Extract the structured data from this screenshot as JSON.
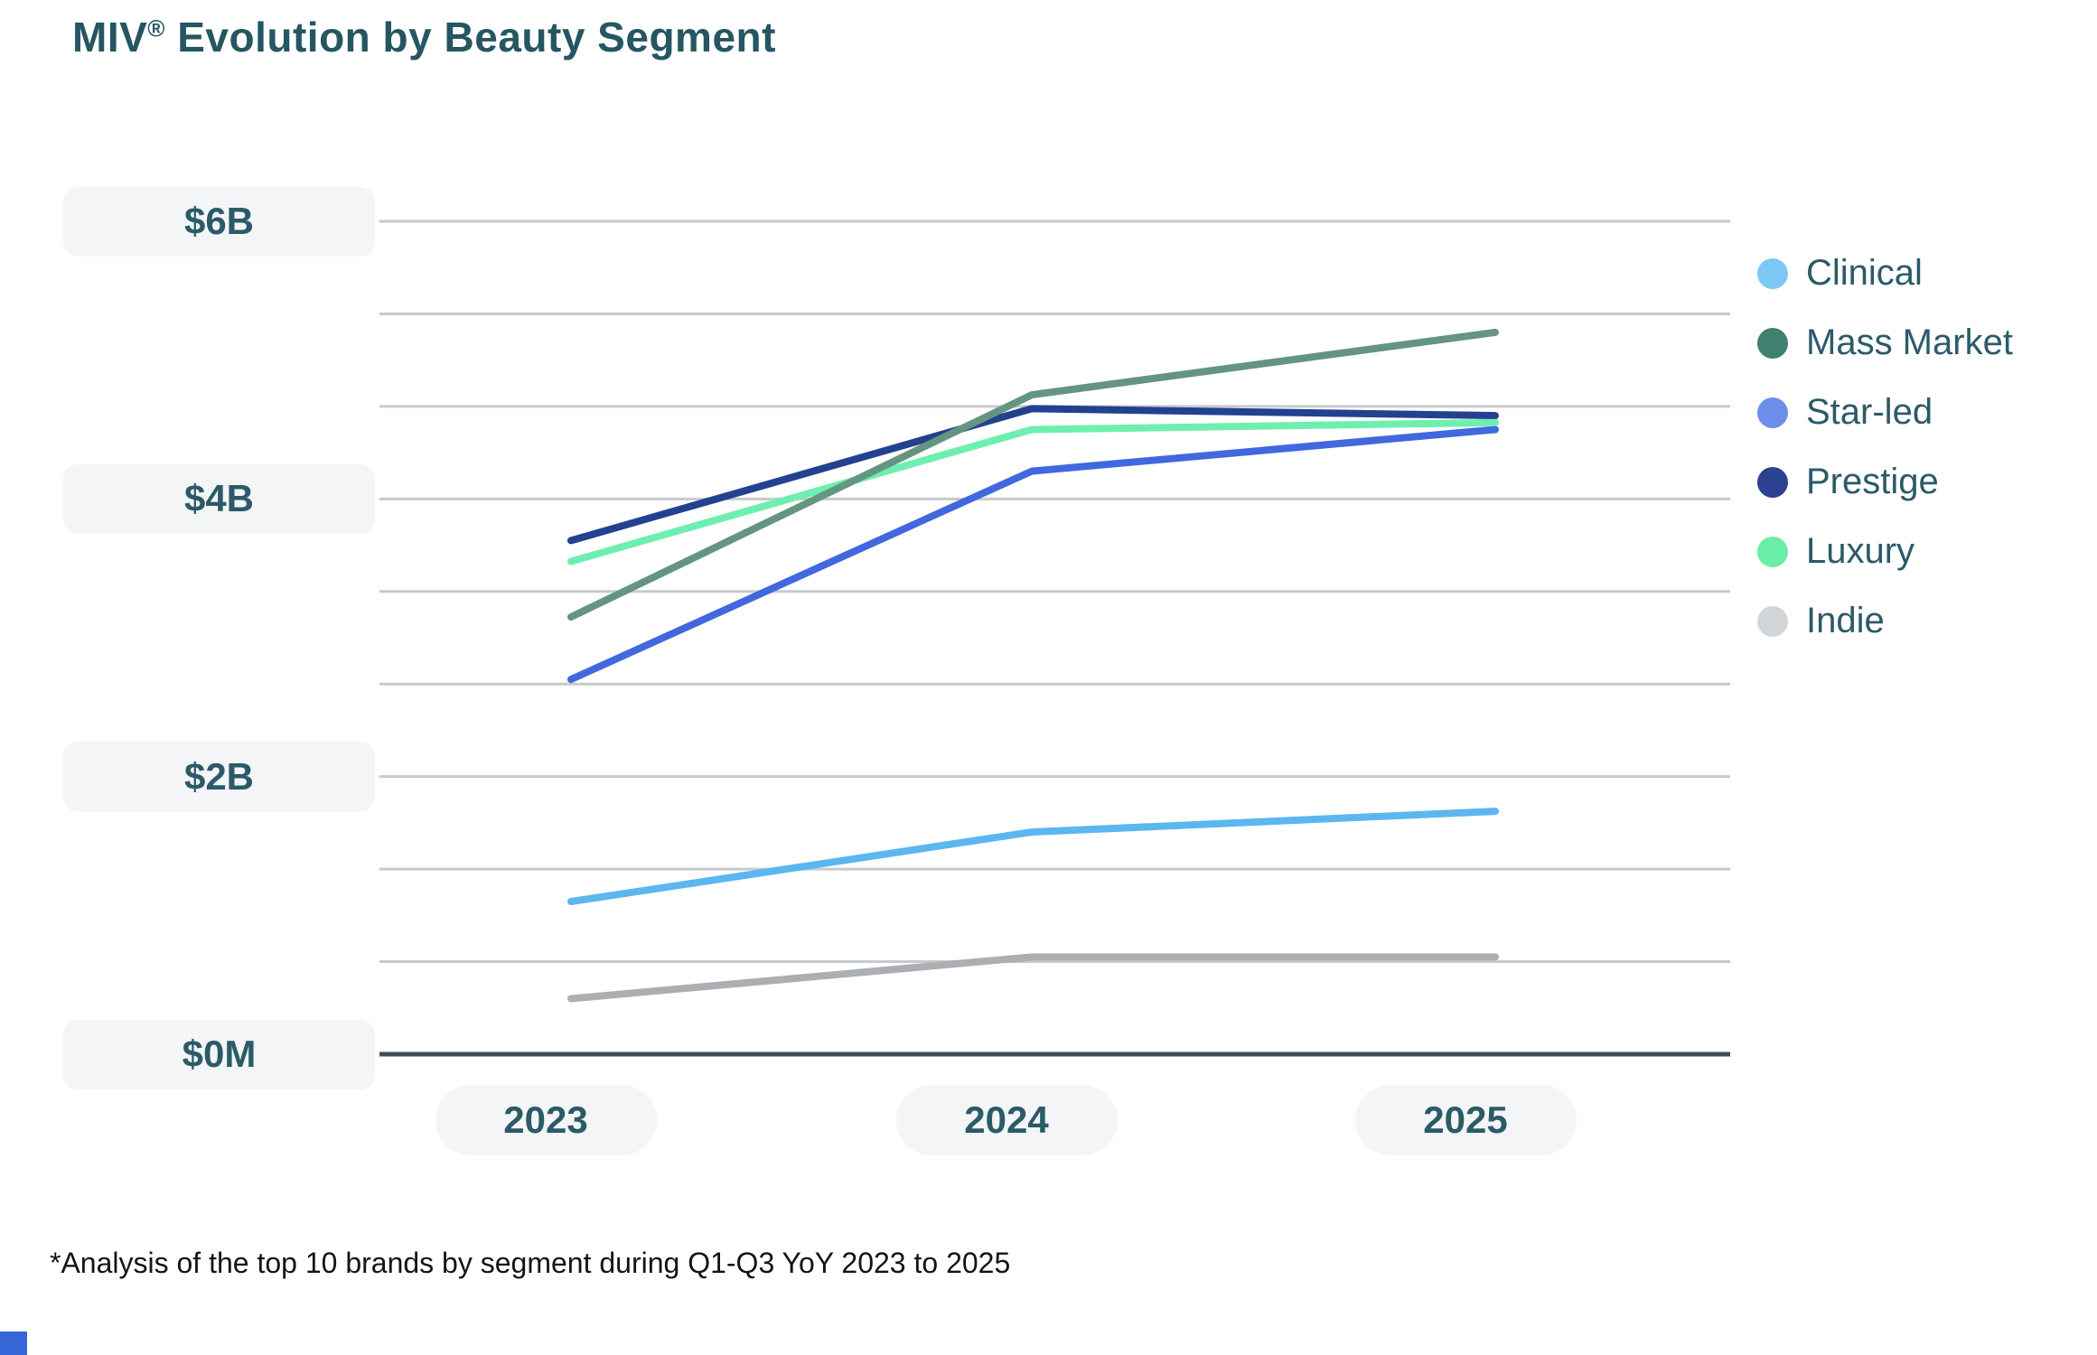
{
  "title": {
    "brand": "MIV",
    "registered": "®",
    "rest": " Evolution by Beauty Segment"
  },
  "footnote": "*Analysis of the top 10 brands by segment during Q1-Q3 YoY 2023 to 2025",
  "colors": {
    "title_text": "#255662",
    "tick_text": "#2b5a68",
    "tick_pill_bg": "#f3f5f6",
    "gridline": "#c7cacb",
    "axis_line": "#3f4e55"
  },
  "chart_data": {
    "type": "line",
    "title": "MIV® Evolution by Beauty Segment",
    "categories": [
      "2023",
      "2024",
      "2025"
    ],
    "x_tick_labels": [
      "2023",
      "2024",
      "2025"
    ],
    "y_tick_labels": [
      "$6B",
      "$4B",
      "$2B",
      "$0M"
    ],
    "y_ticks": [
      {
        "label": "$6B",
        "value": 6
      },
      {
        "label": "$4B",
        "value": 4
      },
      {
        "label": "$2B",
        "value": 2
      },
      {
        "label": "$0M",
        "value": 0
      }
    ],
    "ylim": [
      0,
      6
    ],
    "y_unit": "billions USD",
    "grid": true,
    "gridline_interval_billions": 0.6667,
    "legend_position": "right",
    "series": [
      {
        "name": "Clinical",
        "line_color": "#5cb6ef",
        "values": [
          1.1,
          1.6,
          1.75
        ]
      },
      {
        "name": "Mass Market",
        "line_color": "#649581",
        "values": [
          3.15,
          4.75,
          5.2
        ]
      },
      {
        "name": "Star-led",
        "line_color": "#4168de",
        "values": [
          2.7,
          4.2,
          4.5
        ]
      },
      {
        "name": "Prestige",
        "line_color": "#24418f",
        "values": [
          3.7,
          4.65,
          4.6
        ]
      },
      {
        "name": "Luxury",
        "line_color": "#6fefaf",
        "values": [
          3.55,
          4.5,
          4.55
        ]
      },
      {
        "name": "Indie",
        "line_color": "#abafb3",
        "values": [
          0.4,
          0.7,
          0.7
        ]
      }
    ],
    "legend_items": [
      {
        "label": "Clinical",
        "dot_color": "#7ec8f5"
      },
      {
        "label": "Mass Market",
        "dot_color": "#3f8070"
      },
      {
        "label": "Star-led",
        "dot_color": "#6d8fea"
      },
      {
        "label": "Prestige",
        "dot_color": "#2c4190"
      },
      {
        "label": "Luxury",
        "dot_color": "#69eea9"
      },
      {
        "label": "Indie",
        "dot_color": "#d2d6d9"
      }
    ]
  }
}
